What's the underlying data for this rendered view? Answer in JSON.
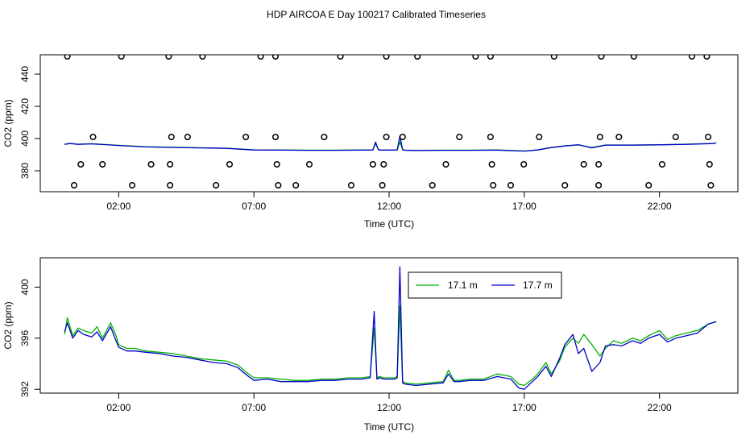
{
  "title": "HDP AIRCOA E  Day 100217  Calibrated Timeseries",
  "colors": {
    "green": "#00b000",
    "blue": "#0000cc",
    "axis": "#000000"
  },
  "chart_data": [
    {
      "type": "line",
      "xlabel": "Time (UTC)",
      "ylabel": "CO2 (ppm)",
      "xlim": [
        -0.9,
        24.9
      ],
      "ylim": [
        367,
        452
      ],
      "x_ticks": [
        {
          "value": 2,
          "label": "02:00"
        },
        {
          "value": 7,
          "label": "07:00"
        },
        {
          "value": 12,
          "label": "12:00"
        },
        {
          "value": 17,
          "label": "17:00"
        },
        {
          "value": 22,
          "label": "22:00"
        }
      ],
      "y_ticks": [
        {
          "value": 380,
          "label": "380"
        },
        {
          "value": 400,
          "label": "400"
        },
        {
          "value": 420,
          "label": "420"
        },
        {
          "value": 440,
          "label": "440"
        }
      ],
      "series": [
        {
          "color": "#00b000",
          "x": [
            0,
            0.2,
            0.5,
            1,
            2,
            3,
            4,
            5,
            6,
            7,
            8,
            9,
            10,
            11,
            11.4,
            11.5,
            11.6,
            11.7,
            12,
            12.3,
            12.4,
            12.5,
            12.6,
            13,
            14,
            15,
            16,
            17,
            17.5,
            18,
            18.5,
            19,
            19.5,
            20,
            21,
            22,
            23,
            24,
            24.1
          ],
          "values": [
            396.5,
            397,
            396.5,
            396.8,
            395.8,
            394.9,
            394.6,
            394.3,
            394,
            393,
            392.9,
            392.8,
            392.8,
            392.9,
            393,
            397,
            393.2,
            392.9,
            392.9,
            393,
            398,
            393.2,
            392.8,
            392.7,
            392.8,
            392.8,
            392.9,
            392.3,
            393,
            394.5,
            395.5,
            396,
            394.5,
            396,
            396,
            396.2,
            396.5,
            397,
            397.3
          ]
        },
        {
          "color": "#0000cc",
          "x": [
            0,
            0.2,
            0.5,
            1,
            2,
            3,
            4,
            5,
            6,
            7,
            8,
            9,
            10,
            11,
            11.4,
            11.5,
            11.6,
            11.7,
            12,
            12.3,
            12.4,
            12.5,
            12.6,
            13,
            14,
            15,
            16,
            17,
            17.5,
            18,
            18.5,
            19,
            19.5,
            20,
            21,
            22,
            23,
            24,
            24.1
          ],
          "values": [
            396.4,
            396.9,
            396.4,
            396.7,
            395.7,
            394.8,
            394.5,
            394.2,
            393.9,
            392.9,
            392.8,
            392.7,
            392.7,
            392.8,
            392.9,
            397.8,
            393.1,
            392.8,
            392.8,
            392.9,
            401.5,
            393.1,
            392.7,
            392.6,
            392.7,
            392.7,
            392.8,
            392.2,
            392.9,
            394.4,
            395.4,
            396.2,
            394.2,
            395.9,
            395.9,
            396.1,
            396.4,
            396.9,
            397.3
          ]
        }
      ],
      "points": {
        "x": [
          0.1,
          2.1,
          3.85,
          5.1,
          7.25,
          7.8,
          10.2,
          11.9,
          13.05,
          15.2,
          15.75,
          18.1,
          19.85,
          21.05,
          23.2,
          23.75,
          1.05,
          3.95,
          4.55,
          6.7,
          7.8,
          9.6,
          11.9,
          12.5,
          14.6,
          15.75,
          17.55,
          19.8,
          20.5,
          22.6,
          23.8,
          0.6,
          1.4,
          3.2,
          3.9,
          6.1,
          7.85,
          9.05,
          11.4,
          11.8,
          14.1,
          15.8,
          16.98,
          19.2,
          19.75,
          22.1,
          23.85,
          0.35,
          2.5,
          3.9,
          5.6,
          7.9,
          8.55,
          10.6,
          11.75,
          13.6,
          15.85,
          16.5,
          18.5,
          19.75,
          21.6,
          23.9
        ],
        "values": [
          451,
          451,
          451,
          451,
          451,
          451,
          451,
          451,
          451,
          451,
          451,
          451,
          451,
          451,
          451,
          451,
          401,
          401,
          401,
          401,
          401,
          401,
          401,
          401,
          401,
          401,
          401,
          401,
          401,
          401,
          401,
          384,
          384,
          384,
          384,
          384,
          384,
          384,
          384,
          384,
          384,
          384,
          384,
          384,
          384,
          384,
          384,
          371,
          371,
          371,
          371,
          371,
          371,
          371,
          371,
          371,
          371,
          371,
          371,
          371,
          371,
          371
        ]
      }
    },
    {
      "type": "line",
      "xlabel": "Time (UTC)",
      "ylabel": "CO2 (ppm)",
      "xlim": [
        -0.9,
        24.9
      ],
      "ylim": [
        391.7,
        402.3
      ],
      "x_ticks": [
        {
          "value": 2,
          "label": "02:00"
        },
        {
          "value": 7,
          "label": "07:00"
        },
        {
          "value": 12,
          "label": "12:00"
        },
        {
          "value": 17,
          "label": "17:00"
        },
        {
          "value": 22,
          "label": "22:00"
        }
      ],
      "y_ticks": [
        {
          "value": 392,
          "label": "392"
        },
        {
          "value": 396,
          "label": "396"
        },
        {
          "value": 400,
          "label": "400"
        }
      ],
      "legend": {
        "position": "top-center",
        "entries": [
          {
            "name": "17.1 m",
            "color": "#00b000"
          },
          {
            "name": "17.7 m",
            "color": "#0000cc"
          }
        ]
      },
      "series": [
        {
          "name": "17.1 m",
          "color": "#00b000",
          "x": [
            0,
            0.1,
            0.3,
            0.5,
            0.7,
            1,
            1.2,
            1.4,
            1.7,
            1.9,
            2,
            2.3,
            2.6,
            3,
            3.5,
            4,
            4.5,
            5,
            5.5,
            6,
            6.4,
            6.8,
            7,
            7.5,
            8,
            8.5,
            9,
            9.5,
            10,
            10.5,
            11,
            11.3,
            11.45,
            11.55,
            11.65,
            11.8,
            12,
            12.2,
            12.3,
            12.4,
            12.5,
            12.6,
            13,
            13.5,
            14,
            14.2,
            14.4,
            14.6,
            15,
            15.5,
            16,
            16.5,
            16.8,
            17,
            17.3,
            17.5,
            17.8,
            18,
            18.3,
            18.5,
            18.8,
            19,
            19.2,
            19.5,
            19.8,
            20,
            20.3,
            20.6,
            21,
            21.3,
            21.6,
            22,
            22.3,
            22.6,
            23,
            23.4,
            23.8,
            24.1
          ],
          "values": [
            396.3,
            397.6,
            396.2,
            396.8,
            396.6,
            396.4,
            396.9,
            396,
            397.2,
            396.2,
            395.5,
            395.2,
            395.2,
            395,
            394.9,
            394.8,
            394.6,
            394.4,
            394.3,
            394.2,
            393.9,
            393.2,
            392.9,
            392.9,
            392.8,
            392.7,
            392.7,
            392.8,
            392.8,
            392.9,
            392.9,
            393,
            396.8,
            392.9,
            393,
            392.9,
            392.9,
            392.9,
            393,
            398.5,
            392.6,
            392.5,
            392.4,
            392.5,
            392.6,
            393.5,
            392.7,
            392.7,
            392.8,
            392.8,
            393.2,
            393,
            392.4,
            392.3,
            392.8,
            393.2,
            394.1,
            393.2,
            394.2,
            395.3,
            396,
            395.6,
            396.3,
            395.5,
            394.6,
            395.2,
            395.8,
            395.6,
            396,
            395.8,
            396.2,
            396.6,
            395.9,
            396.2,
            396.4,
            396.6,
            397.1,
            397.3
          ]
        },
        {
          "name": "17.7 m",
          "color": "#0000cc",
          "x": [
            0,
            0.1,
            0.3,
            0.5,
            0.7,
            1,
            1.2,
            1.4,
            1.7,
            1.9,
            2,
            2.3,
            2.6,
            3,
            3.5,
            4,
            4.5,
            5,
            5.5,
            6,
            6.4,
            6.8,
            7,
            7.5,
            8,
            8.5,
            9,
            9.5,
            10,
            10.5,
            11,
            11.3,
            11.45,
            11.55,
            11.65,
            11.8,
            12,
            12.2,
            12.3,
            12.4,
            12.5,
            12.6,
            13,
            13.5,
            14,
            14.2,
            14.4,
            14.6,
            15,
            15.5,
            16,
            16.5,
            16.8,
            17,
            17.3,
            17.5,
            17.8,
            18,
            18.3,
            18.5,
            18.8,
            19,
            19.2,
            19.5,
            19.8,
            20,
            20.3,
            20.6,
            21,
            21.3,
            21.6,
            22,
            22.3,
            22.6,
            23,
            23.4,
            23.8,
            24.1
          ],
          "values": [
            396.5,
            397.2,
            396,
            396.6,
            396.3,
            396.1,
            396.5,
            395.8,
            396.9,
            395.8,
            395.3,
            395,
            395,
            394.9,
            394.8,
            394.6,
            394.5,
            394.3,
            394.1,
            394,
            393.7,
            393,
            392.7,
            392.8,
            392.6,
            392.6,
            392.6,
            392.7,
            392.7,
            392.8,
            392.8,
            392.9,
            398.1,
            392.8,
            392.9,
            392.8,
            392.8,
            392.8,
            392.9,
            401.6,
            392.5,
            392.4,
            392.3,
            392.4,
            392.5,
            393.2,
            392.6,
            392.6,
            392.7,
            392.7,
            393,
            392.8,
            392.1,
            392,
            392.6,
            393,
            393.8,
            393,
            394.4,
            395.5,
            396.3,
            394.8,
            395.2,
            393.4,
            394.1,
            395.4,
            395.5,
            395.4,
            395.8,
            395.6,
            396,
            396.3,
            395.7,
            396,
            396.2,
            396.4,
            397.1,
            397.3
          ]
        }
      ]
    }
  ]
}
